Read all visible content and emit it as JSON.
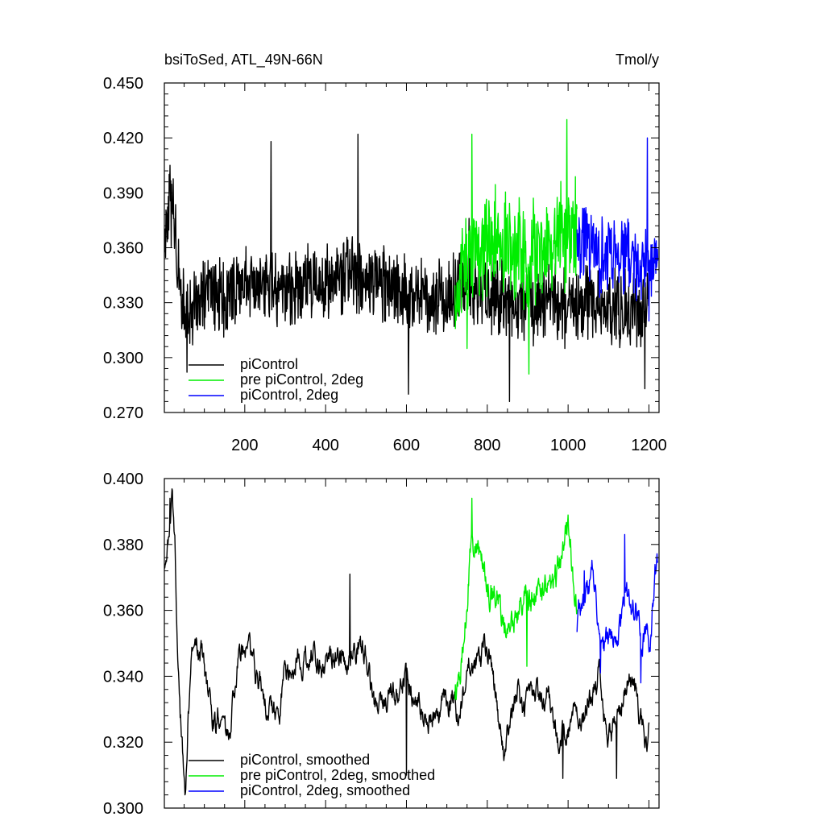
{
  "chart_data": [
    {
      "type": "line",
      "title": "bsiToSed, ATL_49N-66N",
      "units": "Tmol/y",
      "xlim": [
        1,
        1225
      ],
      "ylim": [
        0.27,
        0.45
      ],
      "x_ticks": [
        "200",
        "400",
        "600",
        "800",
        "1000",
        "1200"
      ],
      "y_ticks": [
        "0.270",
        "0.300",
        "0.330",
        "0.360",
        "0.390",
        "0.420",
        "0.450"
      ],
      "legend": [
        "piControl",
        "pre piControl, 2deg",
        "piControl, 2deg"
      ],
      "legend_placement": "bottom-left",
      "grid": false,
      "series": [
        {
          "name": "piControl",
          "color": "#000000",
          "x_range": [
            1,
            1200
          ],
          "style": "noisy",
          "amplitude": 0.016,
          "anchors_x": [
            1,
            10,
            20,
            30,
            45,
            60,
            100,
            150,
            200,
            250,
            300,
            350,
            400,
            450,
            500,
            550,
            600,
            650,
            700,
            750,
            800,
            850,
            900,
            950,
            1000,
            1050,
            1100,
            1150,
            1200
          ],
          "anchors_y": [
            0.355,
            0.378,
            0.382,
            0.36,
            0.333,
            0.322,
            0.334,
            0.334,
            0.342,
            0.338,
            0.334,
            0.344,
            0.34,
            0.348,
            0.342,
            0.34,
            0.335,
            0.332,
            0.334,
            0.34,
            0.335,
            0.33,
            0.328,
            0.33,
            0.328,
            0.33,
            0.33,
            0.325,
            0.33
          ],
          "extremes": [
            [
              15,
              0.405
            ],
            [
              57,
              0.292
            ],
            [
              265,
              0.418
            ],
            [
              480,
              0.422
            ],
            [
              605,
              0.28
            ],
            [
              755,
              0.376
            ],
            [
              855,
              0.276
            ],
            [
              1190,
              0.283
            ]
          ]
        },
        {
          "name": "pre piControl, 2deg",
          "color": "#00ee00",
          "x_range": [
            720,
            1022
          ],
          "style": "noisy",
          "amplitude": 0.022,
          "anchors_x": [
            720,
            740,
            760,
            800,
            850,
            900,
            950,
            1000,
            1022
          ],
          "anchors_y": [
            0.33,
            0.35,
            0.36,
            0.362,
            0.362,
            0.355,
            0.36,
            0.368,
            0.366
          ],
          "extremes": [
            [
              762,
              0.422
            ],
            [
              903,
              0.291
            ],
            [
              997,
              0.43
            ],
            [
              750,
              0.305
            ]
          ]
        },
        {
          "name": "piControl, 2deg",
          "color": "#0000ff",
          "x_range": [
            1022,
            1222
          ],
          "style": "noisy",
          "amplitude": 0.017,
          "anchors_x": [
            1022,
            1050,
            1080,
            1110,
            1140,
            1170,
            1200,
            1222
          ],
          "anchors_y": [
            0.362,
            0.36,
            0.356,
            0.352,
            0.356,
            0.35,
            0.348,
            0.36
          ],
          "extremes": [
            [
              1196,
              0.42
            ],
            [
              1200,
              0.32
            ]
          ]
        }
      ]
    },
    {
      "type": "line",
      "xlim": [
        1,
        1225
      ],
      "ylim": [
        0.3,
        0.4
      ],
      "x_ticks": [],
      "y_ticks": [
        "0.300",
        "0.320",
        "0.340",
        "0.360",
        "0.380",
        "0.400"
      ],
      "legend": [
        "piControl, smoothed",
        "pre piControl, 2deg, smoothed",
        "piControl, 2deg, smoothed"
      ],
      "legend_placement": "bottom-left",
      "grid": false,
      "series": [
        {
          "name": "piControl, smoothed",
          "color": "#000000",
          "x_range": [
            1,
            1200
          ],
          "style": "smooth",
          "amplitude": 0.0055,
          "anchors_x": [
            1,
            10,
            20,
            28,
            40,
            52,
            60,
            70,
            80,
            100,
            110,
            130,
            140,
            160,
            180,
            200,
            240,
            280,
            300,
            350,
            400,
            450,
            480,
            500,
            520,
            550,
            600,
            650,
            700,
            730,
            760,
            800,
            840,
            880,
            900,
            950,
            980,
            1000,
            1040,
            1080,
            1100,
            1150,
            1180,
            1195,
            1200
          ],
          "anchors_y": [
            0.376,
            0.385,
            0.392,
            0.375,
            0.33,
            0.305,
            0.33,
            0.345,
            0.346,
            0.345,
            0.33,
            0.325,
            0.33,
            0.318,
            0.345,
            0.35,
            0.335,
            0.325,
            0.34,
            0.347,
            0.345,
            0.345,
            0.352,
            0.347,
            0.33,
            0.335,
            0.34,
            0.327,
            0.334,
            0.33,
            0.345,
            0.35,
            0.318,
            0.335,
            0.33,
            0.335,
            0.32,
            0.325,
            0.33,
            0.342,
            0.318,
            0.34,
            0.328,
            0.32,
            0.33
          ],
          "extremes": [
            [
              15,
              0.394
            ],
            [
              52,
              0.304
            ],
            [
              460,
              0.371
            ],
            [
              600,
              0.31
            ],
            [
              987,
              0.309
            ],
            [
              1120,
              0.309
            ]
          ]
        },
        {
          "name": "pre piControl, 2deg, smoothed",
          "color": "#00ee00",
          "x_range": [
            720,
            1022
          ],
          "style": "smooth",
          "amplitude": 0.007,
          "anchors_x": [
            720,
            735,
            750,
            760,
            790,
            820,
            840,
            860,
            880,
            910,
            940,
            960,
            980,
            1000,
            1010,
            1022
          ],
          "anchors_y": [
            0.335,
            0.345,
            0.365,
            0.385,
            0.37,
            0.365,
            0.355,
            0.355,
            0.365,
            0.36,
            0.365,
            0.368,
            0.373,
            0.383,
            0.375,
            0.36
          ],
          "extremes": [
            [
              762,
              0.394
            ],
            [
              898,
              0.343
            ]
          ]
        },
        {
          "name": "piControl, 2deg, smoothed",
          "color": "#0000ff",
          "x_range": [
            1022,
            1222
          ],
          "style": "smooth",
          "amplitude": 0.006,
          "anchors_x": [
            1022,
            1040,
            1060,
            1080,
            1100,
            1120,
            1140,
            1160,
            1180,
            1200,
            1215,
            1222
          ],
          "anchors_y": [
            0.355,
            0.36,
            0.37,
            0.348,
            0.35,
            0.355,
            0.365,
            0.36,
            0.355,
            0.35,
            0.37,
            0.374
          ],
          "extremes": [
            [
              1040,
              0.372
            ],
            [
              1080,
              0.341
            ],
            [
              1180,
              0.338
            ],
            [
              1140,
              0.383
            ]
          ]
        }
      ]
    }
  ]
}
